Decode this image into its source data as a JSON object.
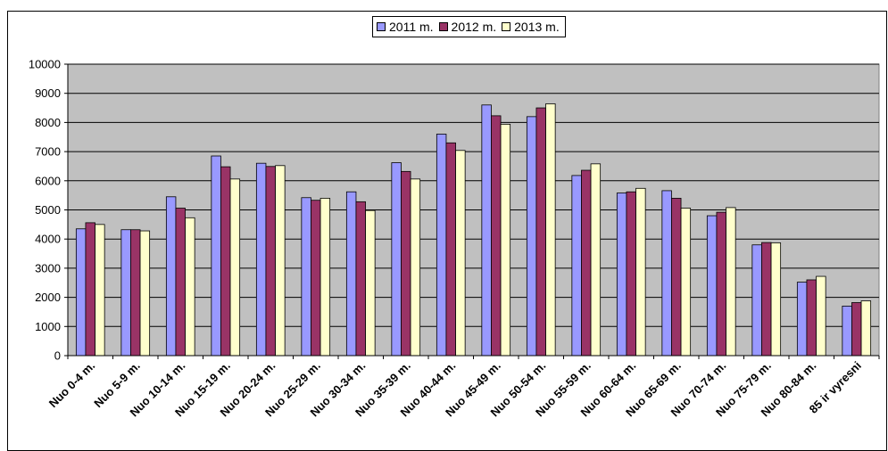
{
  "chart_data": {
    "type": "bar",
    "categories": [
      "Nuo 0-4 m.",
      "Nuo 5-9 m.",
      "Nuo 10-14 m.",
      "Nuo 15-19 m.",
      "Nuo 20-24 m.",
      "Nuo 25-29 m.",
      "Nuo 30-34 m.",
      "Nuo 35-39 m.",
      "Nuo 40-44 m.",
      "Nuo 45-49 m.",
      "Nuo 50-54 m.",
      "Nuo 55-59 m.",
      "Nuo 60-64 m.",
      "Nuo 65-69 m.",
      "Nuo 70-74 m.",
      "Nuo 75-79 m.",
      "Nuo 80-84 m.",
      "85 ir vyresni"
    ],
    "series": [
      {
        "name": "2011 m.",
        "color": "#9999FF",
        "values": [
          4350,
          4320,
          5450,
          6850,
          6600,
          5420,
          5620,
          6620,
          7600,
          8600,
          8200,
          6180,
          5580,
          5660,
          4800,
          3800,
          2520,
          1700
        ]
      },
      {
        "name": "2012 m.",
        "color": "#993366",
        "values": [
          4560,
          4320,
          5060,
          6480,
          6490,
          5330,
          5280,
          6320,
          7300,
          8230,
          8500,
          6360,
          5620,
          5400,
          4920,
          3880,
          2600,
          1820
        ]
      },
      {
        "name": "2013 m.",
        "color": "#FFFFCC",
        "values": [
          4500,
          4280,
          4730,
          6060,
          6520,
          5400,
          4980,
          6060,
          7040,
          7940,
          8640,
          6580,
          5740,
          5060,
          5080,
          3870,
          2720,
          1880
        ]
      }
    ],
    "ylim": [
      0,
      10000
    ],
    "yticks": [
      0,
      1000,
      2000,
      3000,
      4000,
      5000,
      6000,
      7000,
      8000,
      9000,
      10000
    ],
    "plot_background": "#C0C0C0",
    "grid": true,
    "legend_position": "top-center"
  }
}
